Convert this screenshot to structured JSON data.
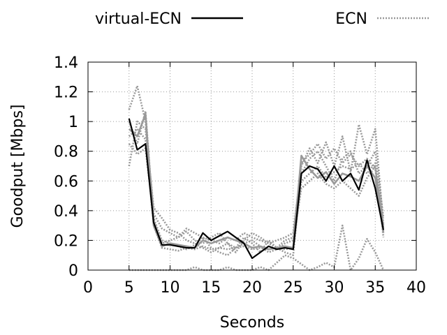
{
  "chart_data": {
    "type": "line",
    "title": "",
    "xlabel": "Seconds",
    "ylabel": "Goodput [Mbps]",
    "xlim": [
      0,
      40
    ],
    "ylim": [
      0,
      1.4
    ],
    "x_ticks": [
      "0",
      "5",
      "10",
      "15",
      "20",
      "25",
      "30",
      "35",
      "40"
    ],
    "y_ticks": [
      "0",
      "0.2",
      "0.4",
      "0.6",
      "0.8",
      "1",
      "1.2",
      "1.4"
    ],
    "grid": true,
    "legend_position": "top",
    "legend": [
      {
        "label": "virtual-ECN",
        "style": "solid",
        "color": "#000000"
      },
      {
        "label": "ECN",
        "style": "dotted",
        "color": "#999999"
      }
    ],
    "series": [
      {
        "name": "virtual-ECN",
        "style": "solid",
        "color": "#000000",
        "x": [
          5,
          6,
          7,
          8,
          9,
          10,
          11,
          12,
          13,
          14,
          15,
          16,
          17,
          18,
          19,
          20,
          21,
          22,
          23,
          24,
          25,
          26,
          27,
          28,
          29,
          30,
          31,
          32,
          33,
          34,
          35,
          36
        ],
        "y": [
          1.02,
          0.81,
          0.85,
          0.32,
          0.17,
          0.17,
          0.16,
          0.15,
          0.15,
          0.25,
          0.2,
          0.23,
          0.26,
          0.22,
          0.18,
          0.08,
          0.12,
          0.16,
          0.14,
          0.15,
          0.14,
          0.65,
          0.7,
          0.68,
          0.6,
          0.7,
          0.6,
          0.65,
          0.54,
          0.74,
          0.55,
          0.27
        ]
      },
      {
        "style": "solid",
        "color": "#999999",
        "x": [
          5,
          6,
          7,
          8,
          9,
          10,
          11,
          12,
          13,
          14,
          15,
          16,
          17,
          18,
          19,
          20,
          21,
          22,
          23,
          24,
          25,
          26,
          27,
          28,
          29,
          30,
          31,
          32,
          33,
          34,
          35,
          36
        ],
        "y": [
          0.95,
          0.9,
          1.05,
          0.3,
          0.16,
          0.18,
          0.17,
          0.16,
          0.15,
          0.2,
          0.18,
          0.2,
          0.22,
          0.2,
          0.18,
          0.15,
          0.16,
          0.14,
          0.15,
          0.16,
          0.15,
          0.77,
          0.68,
          0.62,
          0.66,
          0.58,
          0.65,
          0.63,
          0.6,
          0.7,
          0.62,
          0.25
        ]
      },
      {
        "style": "dotted",
        "color": "#999999",
        "x": [
          5,
          6,
          7,
          8,
          9,
          10,
          11,
          12,
          13,
          14,
          15,
          16,
          17,
          18,
          19,
          20,
          21,
          22,
          23,
          24,
          25,
          26,
          27,
          28,
          29,
          30,
          31,
          32,
          33,
          34,
          35,
          36
        ],
        "y": [
          1.08,
          1.24,
          1.0,
          0.38,
          0.28,
          0.25,
          0.22,
          0.28,
          0.25,
          0.22,
          0.2,
          0.18,
          0.22,
          0.2,
          0.25,
          0.22,
          0.2,
          0.18,
          0.2,
          0.22,
          0.25,
          0.7,
          0.82,
          0.72,
          0.86,
          0.7,
          0.9,
          0.66,
          0.98,
          0.78,
          0.95,
          0.3
        ]
      },
      {
        "style": "dotted",
        "color": "#999999",
        "x": [
          5,
          6,
          7,
          8,
          9,
          10,
          11,
          12,
          13,
          14,
          15,
          16,
          17,
          18,
          19,
          20,
          21,
          22,
          23,
          24,
          25,
          26,
          27,
          28,
          29,
          30,
          31,
          32,
          33,
          34,
          35,
          36
        ],
        "y": [
          0.7,
          1.0,
          0.95,
          0.42,
          0.35,
          0.27,
          0.25,
          0.2,
          0.18,
          0.15,
          0.12,
          0.15,
          0.18,
          0.12,
          0.2,
          0.25,
          0.22,
          0.18,
          0.15,
          0.12,
          0.1,
          0.65,
          0.75,
          0.8,
          0.7,
          0.6,
          0.75,
          0.8,
          0.65,
          0.7,
          0.8,
          0.35
        ]
      },
      {
        "style": "dotted",
        "color": "#999999",
        "x": [
          5,
          6,
          7,
          8,
          9,
          10,
          11,
          12,
          13,
          14,
          15,
          16,
          17,
          18,
          19,
          20,
          21,
          22,
          23,
          24,
          25,
          26,
          27,
          28,
          29,
          30,
          31,
          32,
          33,
          34,
          35,
          36
        ],
        "y": [
          0.85,
          0.78,
          0.82,
          0.35,
          0.2,
          0.18,
          0.16,
          0.14,
          0.17,
          0.22,
          0.15,
          0.12,
          0.1,
          0.15,
          0.18,
          0.2,
          0.16,
          0.12,
          0.14,
          0.18,
          0.2,
          0.55,
          0.6,
          0.65,
          0.58,
          0.55,
          0.6,
          0.55,
          0.5,
          0.62,
          0.7,
          0.22
        ]
      },
      {
        "style": "dotted",
        "color": "#999999",
        "x": [
          5,
          6,
          7,
          8,
          9,
          10,
          11,
          12,
          13,
          14,
          15,
          16,
          17,
          18,
          19,
          20,
          21,
          22,
          23,
          24,
          25,
          26,
          27,
          28,
          29,
          30,
          31,
          32,
          33,
          34,
          35,
          36
        ],
        "y": [
          0.9,
          0.95,
          0.88,
          0.3,
          0.15,
          0.14,
          0.13,
          0.15,
          0.14,
          0.16,
          0.14,
          0.15,
          0.14,
          0.15,
          0.16,
          0.14,
          0.15,
          0.14,
          0.15,
          0.14,
          0.15,
          0.6,
          0.65,
          0.7,
          0.62,
          0.66,
          0.7,
          0.68,
          0.72,
          0.65,
          0.72,
          0.28
        ]
      },
      {
        "style": "dotted",
        "color": "#999999",
        "x": [
          5,
          6,
          7,
          8,
          9,
          10,
          11,
          12,
          13,
          14,
          15,
          16,
          17,
          18,
          19,
          20,
          21,
          22,
          23,
          24,
          25,
          26,
          27,
          28,
          29,
          30,
          31,
          32,
          33,
          34,
          35,
          36
        ],
        "y": [
          0.0,
          0.0,
          0.0,
          0.0,
          0.0,
          0.0,
          0.0,
          0.0,
          0.02,
          0.0,
          0.0,
          0.0,
          0.02,
          0.0,
          0.0,
          0.0,
          0.02,
          0.0,
          0.05,
          0.1,
          0.08,
          0.04,
          0.0,
          0.02,
          0.05,
          0.02,
          0.3,
          0.0,
          0.08,
          0.21,
          0.12,
          0.0
        ]
      },
      {
        "style": "dotted",
        "color": "#999999",
        "x": [
          5,
          6,
          7,
          8,
          9,
          10,
          11,
          12,
          13,
          14,
          15,
          16,
          17,
          18,
          19,
          20,
          21,
          22,
          23,
          24,
          25,
          26,
          27,
          28,
          29,
          30,
          31,
          32,
          33,
          34,
          35,
          36
        ],
        "y": [
          1.0,
          0.85,
          1.07,
          0.33,
          0.18,
          0.2,
          0.22,
          0.26,
          0.2,
          0.18,
          0.22,
          0.25,
          0.18,
          0.15,
          0.22,
          0.18,
          0.12,
          0.2,
          0.15,
          0.2,
          0.22,
          0.72,
          0.78,
          0.85,
          0.75,
          0.82,
          0.72,
          0.78,
          0.7,
          0.75,
          0.68,
          0.3
        ]
      }
    ]
  }
}
